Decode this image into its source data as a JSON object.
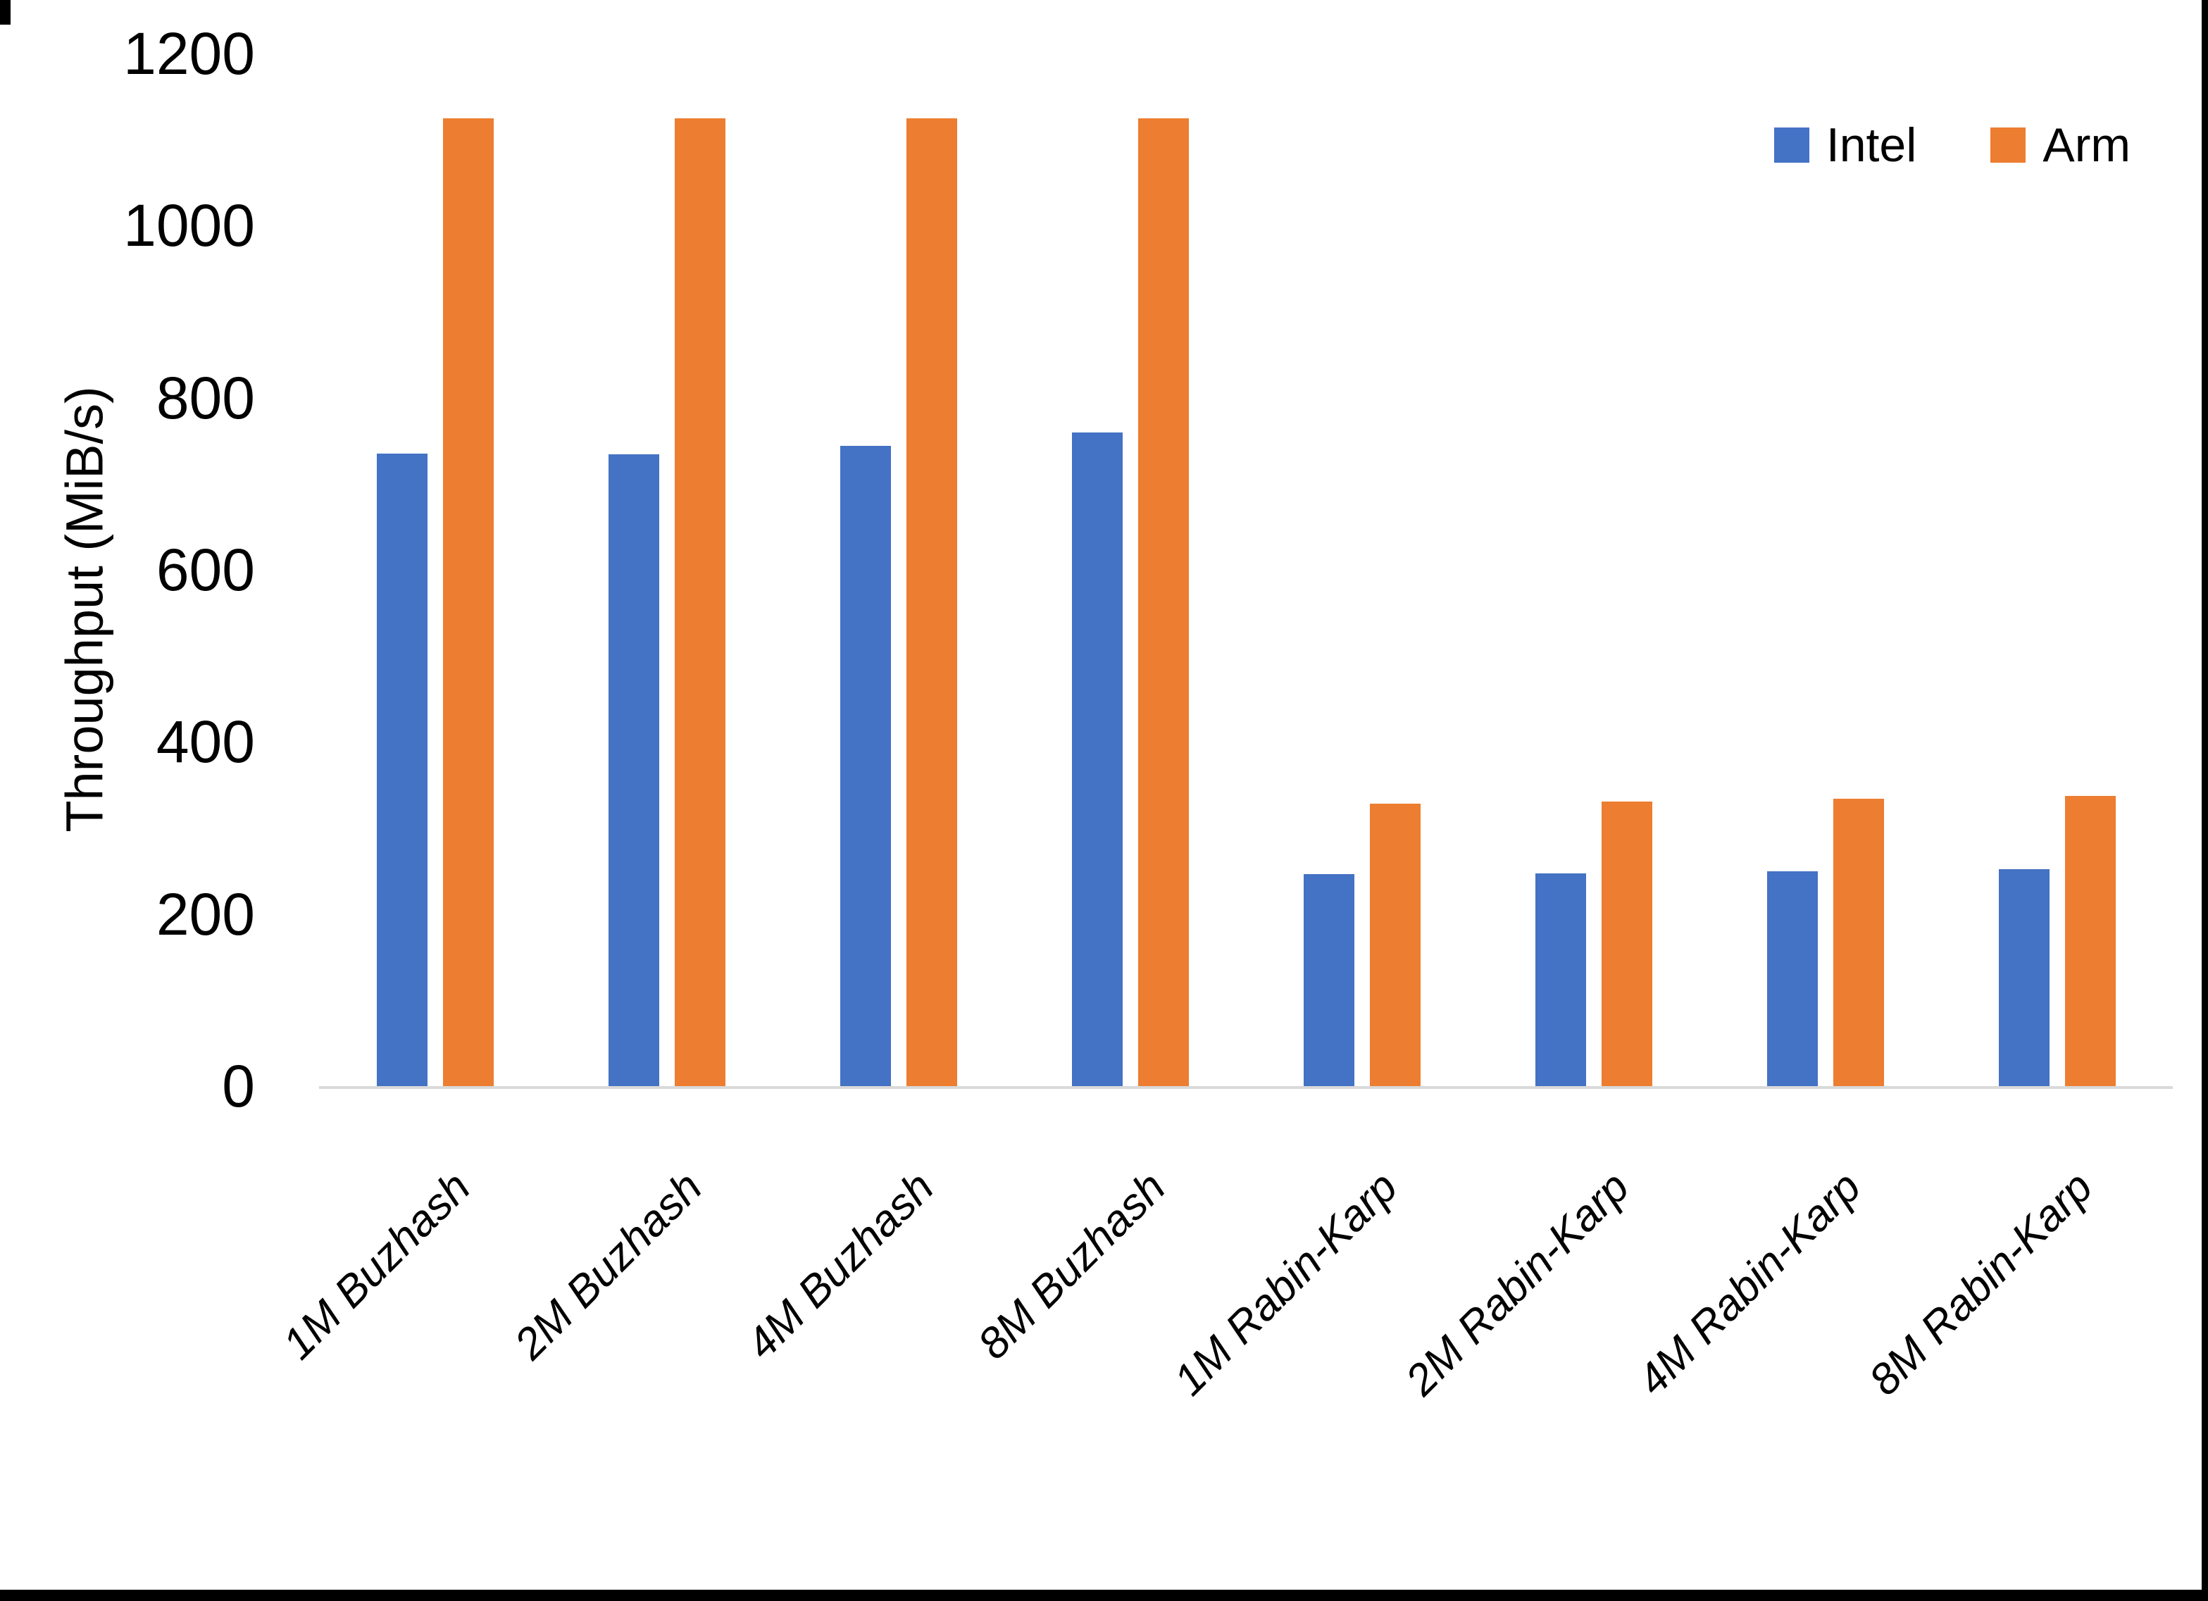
{
  "chart_data": {
    "type": "bar",
    "title": "",
    "xlabel": "",
    "ylabel": "Throughput (MiB/s)",
    "ylim": [
      0,
      1200
    ],
    "y_ticks": [
      0,
      200,
      400,
      600,
      800,
      1000,
      1200
    ],
    "grid": false,
    "legend_position": "top-right",
    "categories": [
      "1M Buzhash",
      "2M Buzhash",
      "4M Buzhash",
      "8M Buzhash",
      "1M Rabin-Karp",
      "2M Rabin-Karp",
      "4M Rabin-Karp",
      "8M Rabin-Karp"
    ],
    "series": [
      {
        "name": "Intel",
        "color": "#4472C4",
        "values": [
          735,
          734,
          744,
          760,
          246,
          247,
          250,
          252
        ]
      },
      {
        "name": "Arm",
        "color": "#ED7D31",
        "values": [
          1125,
          1125,
          1125,
          1125,
          328,
          331,
          334,
          337
        ]
      }
    ],
    "colors": {
      "axis_line": "#d9d9d9",
      "text": "#000000",
      "background": "#ffffff"
    }
  }
}
